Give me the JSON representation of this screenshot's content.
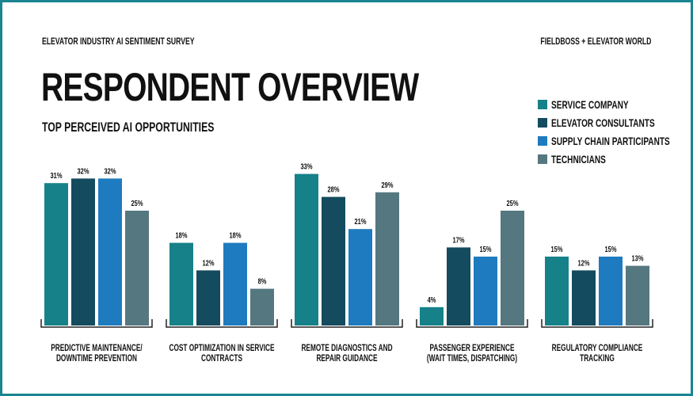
{
  "header": {
    "survey": "ELEVATOR INDUSTRY AI SENTIMENT SURVEY",
    "source": "FIELDBOSS + ELEVATOR WORLD",
    "title": "RESPONDENT OVERVIEW",
    "subtitle": "TOP PERCEIVED AI OPPORTUNITIES"
  },
  "colors": {
    "frame": "#1a8590"
  },
  "chart_data": {
    "type": "bar",
    "categories": [
      [
        "PREDICTIVE MAINTENANCE/",
        "DOWNTIME PREVENTION"
      ],
      [
        "COST OPTIMIZATION IN SERVICE",
        "CONTRACTS"
      ],
      [
        "REMOTE DIAGNOSTICS AND",
        "REPAIR GUIDANCE"
      ],
      [
        "PASSENGER EXPERIENCE",
        "(WAIT TIMES, DISPATCHING)"
      ],
      [
        "REGULATORY COMPLIANCE",
        "TRACKING"
      ]
    ],
    "series": [
      {
        "name": "SERVICE COMPANY",
        "color": "#168189",
        "values": [
          31,
          18,
          33,
          4,
          15
        ]
      },
      {
        "name": "ELEVATOR CONSULTANTS",
        "color": "#144b5e",
        "values": [
          32,
          12,
          28,
          17,
          12
        ]
      },
      {
        "name": "SUPPLY CHAIN PARTICIPANTS",
        "color": "#1f7bbf",
        "values": [
          32,
          18,
          21,
          15,
          15
        ]
      },
      {
        "name": "TECHNICIANS",
        "color": "#557780",
        "values": [
          25,
          8,
          29,
          25,
          13
        ]
      }
    ],
    "value_suffix": "%",
    "legend": "top-right",
    "grid": false,
    "ylim": [
      0,
      33
    ]
  }
}
